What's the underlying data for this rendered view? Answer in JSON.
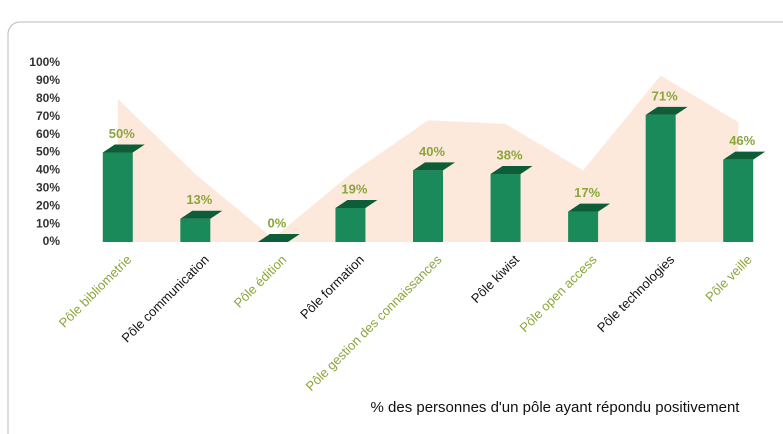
{
  "chart_data": {
    "type": "bar",
    "categories": [
      "Pôle bibliometrie",
      "Pôle communication",
      "Pôle édition",
      "Pôle formation",
      "Pôle gestion des connaissances",
      "Pôle kiwist",
      "Pôle open access",
      "Pôle technologies",
      "Pôle veille"
    ],
    "category_colors": [
      "#8aa63a",
      "#111111",
      "#8aa63a",
      "#111111",
      "#8aa63a",
      "#111111",
      "#8aa63a",
      "#111111",
      "#8aa63a"
    ],
    "series": [
      {
        "name": "% des personnes d'un pôle ayant répondu positivement",
        "color": "#1a8a5a",
        "values": [
          50,
          13,
          0,
          19,
          40,
          38,
          17,
          71,
          46
        ],
        "value_labels": [
          "50%",
          "13%",
          "0%",
          "19%",
          "40%",
          "38%",
          "17%",
          "71%",
          "46%"
        ]
      },
      {
        "color": "#fde9dc",
        "values": [
          80,
          38,
          2,
          38,
          68,
          66,
          40,
          93,
          67
        ]
      }
    ],
    "ylim": [
      0,
      100
    ],
    "yticks": [
      {
        "value": 0,
        "label": "0%"
      },
      {
        "value": 10,
        "label": "10%"
      },
      {
        "value": 20,
        "label": "20%"
      },
      {
        "value": 30,
        "label": "30%"
      },
      {
        "value": 40,
        "label": "40%"
      },
      {
        "value": 50,
        "label": "50%"
      },
      {
        "value": 60,
        "label": "60%"
      },
      {
        "value": 70,
        "label": "70%"
      },
      {
        "value": 80,
        "label": "80%"
      },
      {
        "value": 90,
        "label": "90%"
      },
      {
        "value": 100,
        "label": "100%"
      }
    ]
  }
}
